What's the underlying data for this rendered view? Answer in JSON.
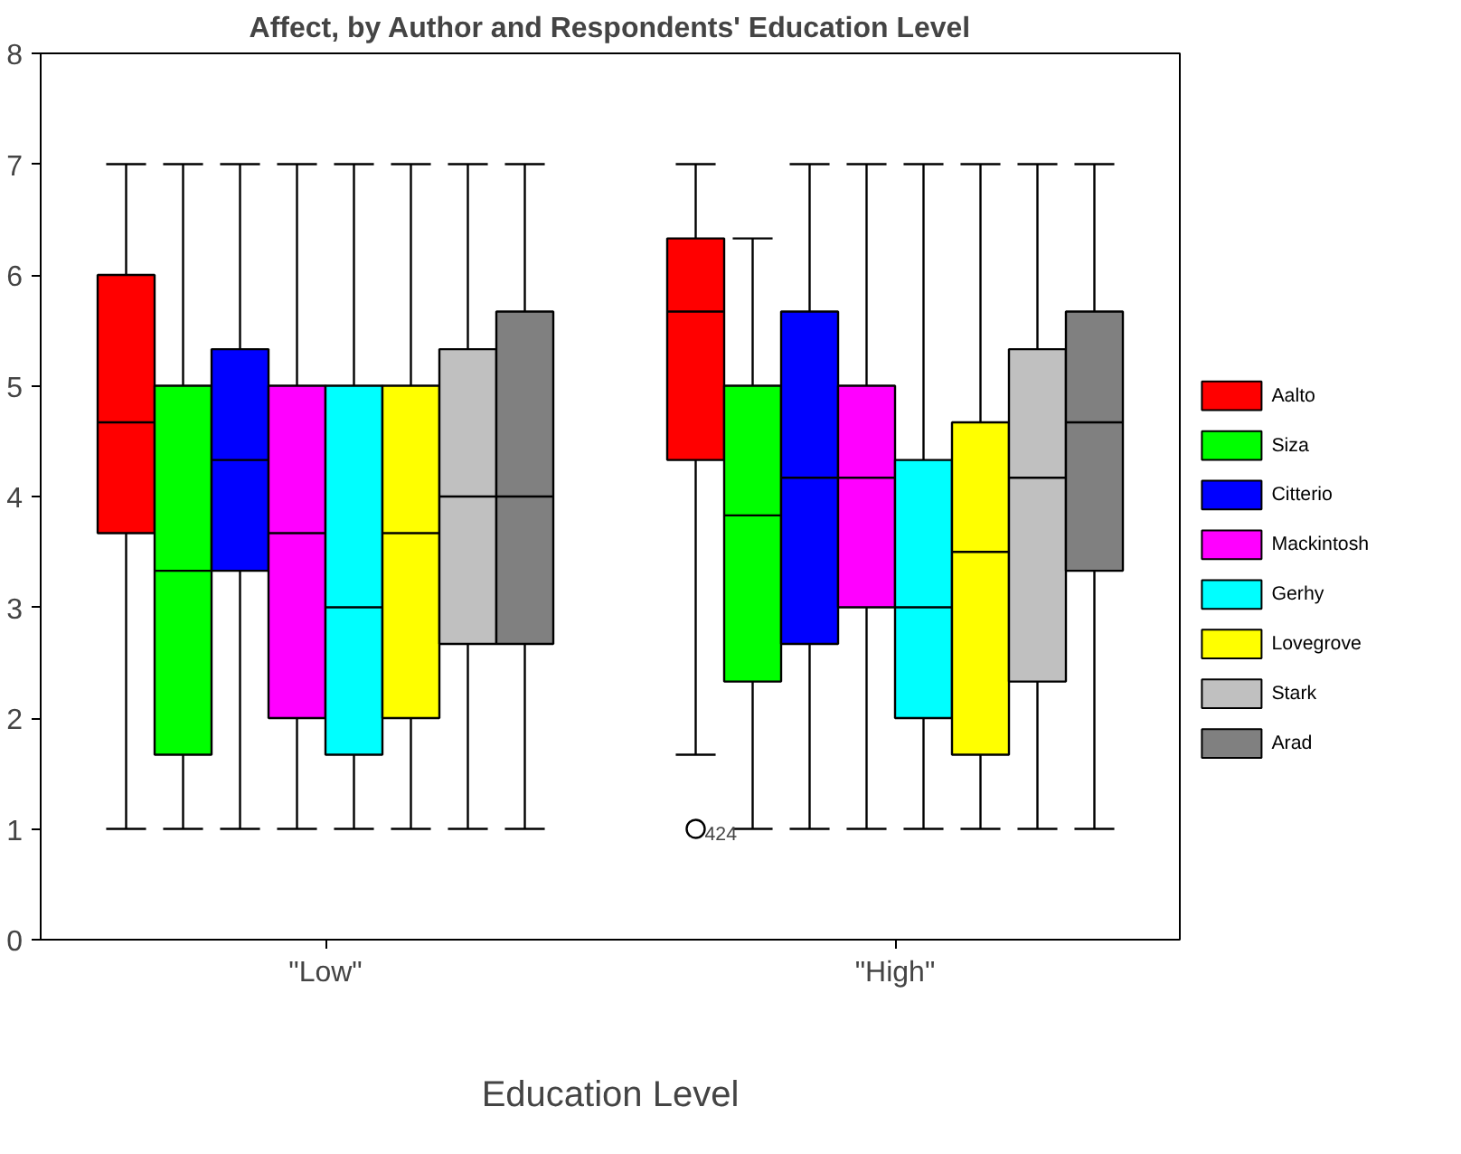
{
  "chart_data": {
    "type": "box",
    "title": "Affect, by Author and Respondents' Education Level",
    "xlabel": "Education Level",
    "categories": [
      "\"Low\"",
      "\"High\""
    ],
    "ylim": [
      0,
      8
    ],
    "yticks": [
      0,
      1,
      2,
      3,
      4,
      5,
      6,
      7,
      8
    ],
    "grid": false,
    "legend": "right",
    "series": [
      {
        "name": "Aalto",
        "color": "#ff0000",
        "boxes": [
          {
            "low": 1,
            "q1": 3.67,
            "median": 4.67,
            "q3": 6,
            "high": 7
          },
          {
            "low": 1.67,
            "q1": 4.33,
            "median": 5.67,
            "q3": 6.33,
            "high": 7,
            "outliers": [
              1
            ]
          }
        ]
      },
      {
        "name": "Siza",
        "color": "#00ff00",
        "boxes": [
          {
            "low": 1,
            "q1": 1.67,
            "median": 3.33,
            "q3": 5,
            "high": 7
          },
          {
            "low": 1,
            "q1": 2.33,
            "median": 3.83,
            "q3": 5,
            "high": 6.33
          }
        ]
      },
      {
        "name": "Citterio",
        "color": "#0000ff",
        "boxes": [
          {
            "low": 1,
            "q1": 3.33,
            "median": 4.33,
            "q3": 5.33,
            "high": 7
          },
          {
            "low": 1,
            "q1": 2.67,
            "median": 4.17,
            "q3": 5.67,
            "high": 7
          }
        ]
      },
      {
        "name": "Mackintosh",
        "color": "#ff00ff",
        "boxes": [
          {
            "low": 1,
            "q1": 2,
            "median": 3.67,
            "q3": 5,
            "high": 7
          },
          {
            "low": 1,
            "q1": 3,
            "median": 4.17,
            "q3": 5,
            "high": 7
          }
        ]
      },
      {
        "name": "Gerhy",
        "color": "#00ffff",
        "boxes": [
          {
            "low": 1,
            "q1": 1.67,
            "median": 3,
            "q3": 5,
            "high": 7
          },
          {
            "low": 1,
            "q1": 2,
            "median": 3,
            "q3": 4.33,
            "high": 7
          }
        ]
      },
      {
        "name": "Lovegrove",
        "color": "#ffff00",
        "boxes": [
          {
            "low": 1,
            "q1": 2,
            "median": 3.67,
            "q3": 5,
            "high": 7
          },
          {
            "low": 1,
            "q1": 1.67,
            "median": 3.5,
            "q3": 4.67,
            "high": 7
          }
        ]
      },
      {
        "name": "Stark",
        "color": "#c0c0c0",
        "boxes": [
          {
            "low": 1,
            "q1": 2.67,
            "median": 4,
            "q3": 5.33,
            "high": 7
          },
          {
            "low": 1,
            "q1": 2.33,
            "median": 4.17,
            "q3": 5.33,
            "high": 7
          }
        ]
      },
      {
        "name": "Arad",
        "color": "#808080",
        "boxes": [
          {
            "low": 1,
            "q1": 2.67,
            "median": 4,
            "q3": 5.67,
            "high": 7
          },
          {
            "low": 1,
            "q1": 3.33,
            "median": 4.67,
            "q3": 5.67,
            "high": 7
          }
        ]
      }
    ],
    "annotations": [
      "424"
    ]
  }
}
